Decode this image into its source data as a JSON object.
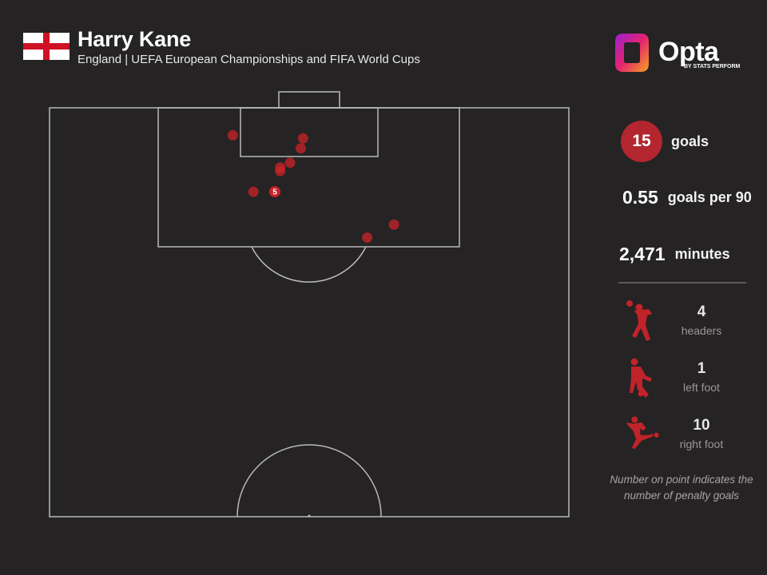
{
  "header": {
    "title": "Harry Kane",
    "subtitle": "England | UEFA European Championships and FIFA World Cups"
  },
  "brand": {
    "name": "Opta",
    "tagline": "BY STATS PERFORM",
    "logo_colors": [
      "#9d1fd1",
      "#e5246f",
      "#f6a21d"
    ]
  },
  "chart_data": {
    "type": "scatter",
    "description_units": "pitch map of goal locations; x = pitch width in metres (0-68, 0 = left touchline), y = distance from goal line in metres",
    "marker_color": "#d1232a",
    "points": [
      {
        "x": 24.0,
        "y": 3.6,
        "pens": null
      },
      {
        "x": 33.2,
        "y": 4.0,
        "pens": null
      },
      {
        "x": 32.9,
        "y": 5.3,
        "pens": null
      },
      {
        "x": 31.5,
        "y": 7.2,
        "pens": null
      },
      {
        "x": 30.2,
        "y": 7.8,
        "pens": null
      },
      {
        "x": 30.2,
        "y": 8.3,
        "pens": null
      },
      {
        "x": 26.7,
        "y": 11.0,
        "pens": null
      },
      {
        "x": 29.5,
        "y": 11.0,
        "pens": 5
      },
      {
        "x": 45.1,
        "y": 15.3,
        "pens": null
      },
      {
        "x": 41.6,
        "y": 17.0,
        "pens": null
      }
    ]
  },
  "stats": {
    "goals": {
      "value": "15",
      "label": "goals"
    },
    "per90": {
      "value": "0.55",
      "label": "goals per 90"
    },
    "minutes": {
      "value": "2,471",
      "label": "minutes"
    }
  },
  "body_parts": [
    {
      "icon": "header-player-icon",
      "count": "4",
      "label": "headers"
    },
    {
      "icon": "left-foot-player-icon",
      "count": "1",
      "label": "left foot"
    },
    {
      "icon": "right-foot-player-icon",
      "count": "10",
      "label": "right foot"
    }
  ],
  "note": "Number on point indicates the number of penalty goals"
}
